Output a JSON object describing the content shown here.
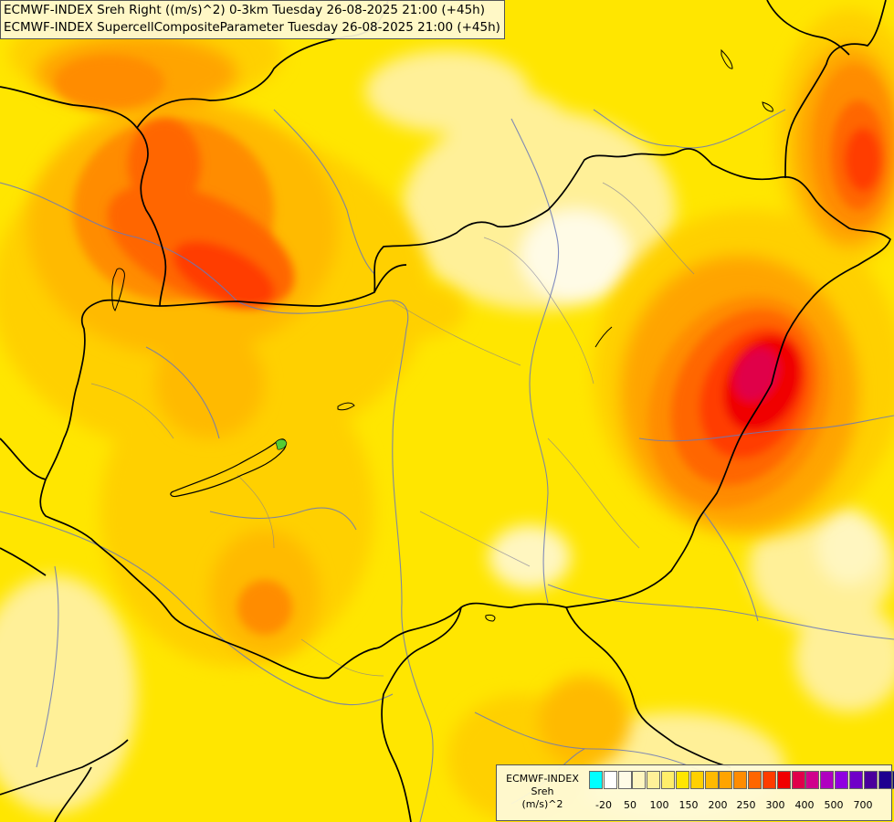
{
  "titles": {
    "line1": "ECMWF-INDEX Sreh Right ((m/s)^2) 0-3km Tuesday 26-08-2025 21:00 (+45h)",
    "line2": "ECMWF-INDEX SupercellCompositeParameter Tuesday 26-08-2025 21:00 (+45h)"
  },
  "legend": {
    "name": "ECMWF-INDEX",
    "variable": "Sreh",
    "unit": "(m/s)^2",
    "colors": [
      "#00ffff",
      "#ffffff",
      "#fffbe6",
      "#fff6c0",
      "#fff098",
      "#ffee6a",
      "#ffe600",
      "#ffd000",
      "#ffba00",
      "#ffa400",
      "#ff8c00",
      "#ff6600",
      "#ff3c00",
      "#f00000",
      "#e0004a",
      "#d0008c",
      "#b000c0",
      "#9000e0",
      "#7000c8",
      "#4a009c",
      "#1e0090",
      "#000070"
    ],
    "tick_labels": [
      "-20",
      "50",
      "100",
      "150",
      "200",
      "250",
      "300",
      "400",
      "500",
      "700"
    ]
  },
  "map_features": {
    "lake": "Lake Balaton",
    "highlight_color": "#e0004a",
    "field_colors": [
      "#ffe600",
      "#ffd000",
      "#ffa400",
      "#ff8c00",
      "#ff6600",
      "#ff3c00",
      "#f00000",
      "#e0004a",
      "#fff098"
    ]
  }
}
